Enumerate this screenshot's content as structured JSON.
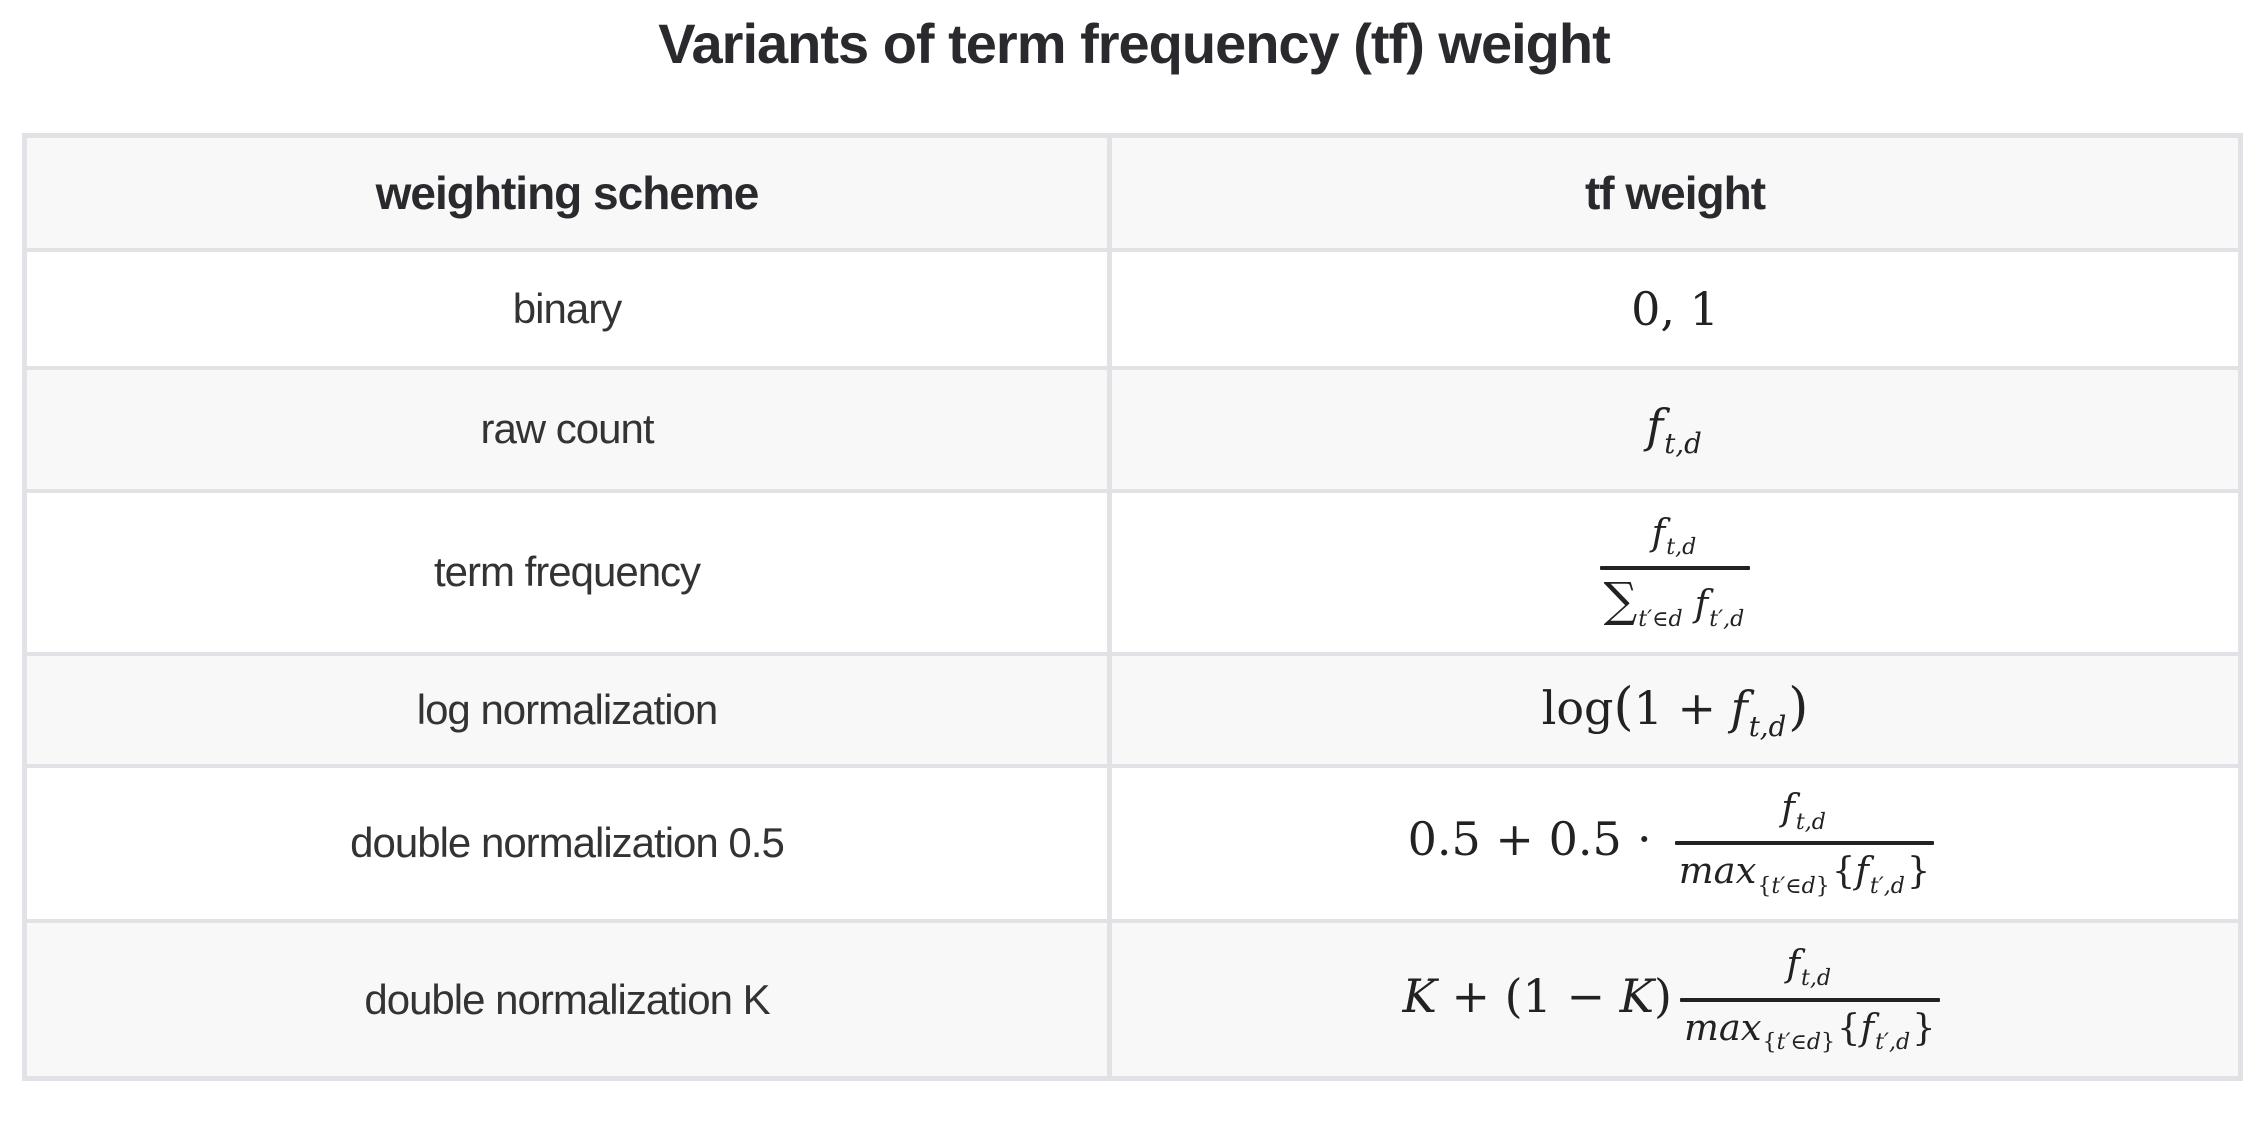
{
  "title": "Variants of term frequency (tf) weight",
  "table": {
    "headers": [
      "weighting scheme",
      "tf weight"
    ],
    "rows": [
      {
        "scheme": "binary",
        "tex": "0, 1",
        "formula": [
          {
            "r": "0, 1"
          }
        ]
      },
      {
        "scheme": "raw count",
        "tex": "f_{t,d}",
        "formula": [
          {
            "i": "f"
          },
          {
            "sub": [
              {
                "i": "t,d"
              }
            ]
          }
        ]
      },
      {
        "scheme": "term frequency",
        "tex": "f_{t,d} / \\sum_{t'∈d} f_{t',d}",
        "formula": [
          {
            "frac": [
              [
                {
                  "i": "f"
                },
                {
                  "sub": [
                    {
                      "i": "t,d"
                    }
                  ]
                }
              ],
              [
                {
                  "r": "∑",
                  "cls": "big"
                },
                {
                  "sub": [
                    {
                      "i": "t′∈d"
                    }
                  ]
                },
                {
                  "sp": 10
                },
                {
                  "i": "f"
                },
                {
                  "sub": [
                    {
                      "i": "t′,d"
                    }
                  ]
                }
              ]
            ]
          }
        ]
      },
      {
        "scheme": "log normalization",
        "tex": "log(1 + f_{t,d})",
        "formula": [
          {
            "r": "log"
          },
          {
            "r": "(",
            "cls": "paren"
          },
          {
            "r": "1 + "
          },
          {
            "i": "f"
          },
          {
            "sub": [
              {
                "i": "t,d"
              }
            ]
          },
          {
            "r": ")",
            "cls": "paren"
          }
        ]
      },
      {
        "scheme": "double normalization 0.5",
        "tex": "0.5 + 0.5 ⋅ f_{t,d} / max_{{t'∈d}}{f_{t',d}}",
        "formula": [
          {
            "r": "0.5 + 0.5 ⋅ "
          },
          {
            "frac": [
              [
                {
                  "i": "f"
                },
                {
                  "sub": [
                    {
                      "i": "t,d"
                    }
                  ]
                }
              ],
              [
                {
                  "i": "max"
                },
                {
                  "sub": [
                    {
                      "r": "{"
                    },
                    {
                      "i": "t′∈d"
                    },
                    {
                      "r": "}"
                    }
                  ]
                },
                {
                  "r": "{"
                },
                {
                  "i": "f"
                },
                {
                  "sub": [
                    {
                      "i": "t′,d"
                    }
                  ]
                },
                {
                  "r": "}"
                }
              ]
            ]
          }
        ]
      },
      {
        "scheme": "double normalization K",
        "tex": "K + (1 − K) f_{t,d} / max_{{t'∈d}}{f_{t',d}}",
        "formula": [
          {
            "i": "K"
          },
          {
            "r": " + (1 − "
          },
          {
            "i": "K"
          },
          {
            "r": ")"
          },
          {
            "frac": [
              [
                {
                  "i": "f"
                },
                {
                  "sub": [
                    {
                      "i": "t,d"
                    }
                  ]
                }
              ],
              [
                {
                  "i": "max"
                },
                {
                  "sub": [
                    {
                      "r": "{"
                    },
                    {
                      "i": "t′∈d"
                    },
                    {
                      "r": "}"
                    }
                  ]
                },
                {
                  "r": "{"
                },
                {
                  "i": "f"
                },
                {
                  "sub": [
                    {
                      "i": "t′,d"
                    }
                  ]
                },
                {
                  "r": "}"
                }
              ]
            ]
          }
        ]
      }
    ]
  },
  "colors": {
    "border": "#e1e1e6",
    "row_stripe": "#f8f8f8",
    "row_plain": "#ffffff",
    "heading_text": "#2a2a2e",
    "label_text": "#333333",
    "formula_text": "#222222"
  }
}
